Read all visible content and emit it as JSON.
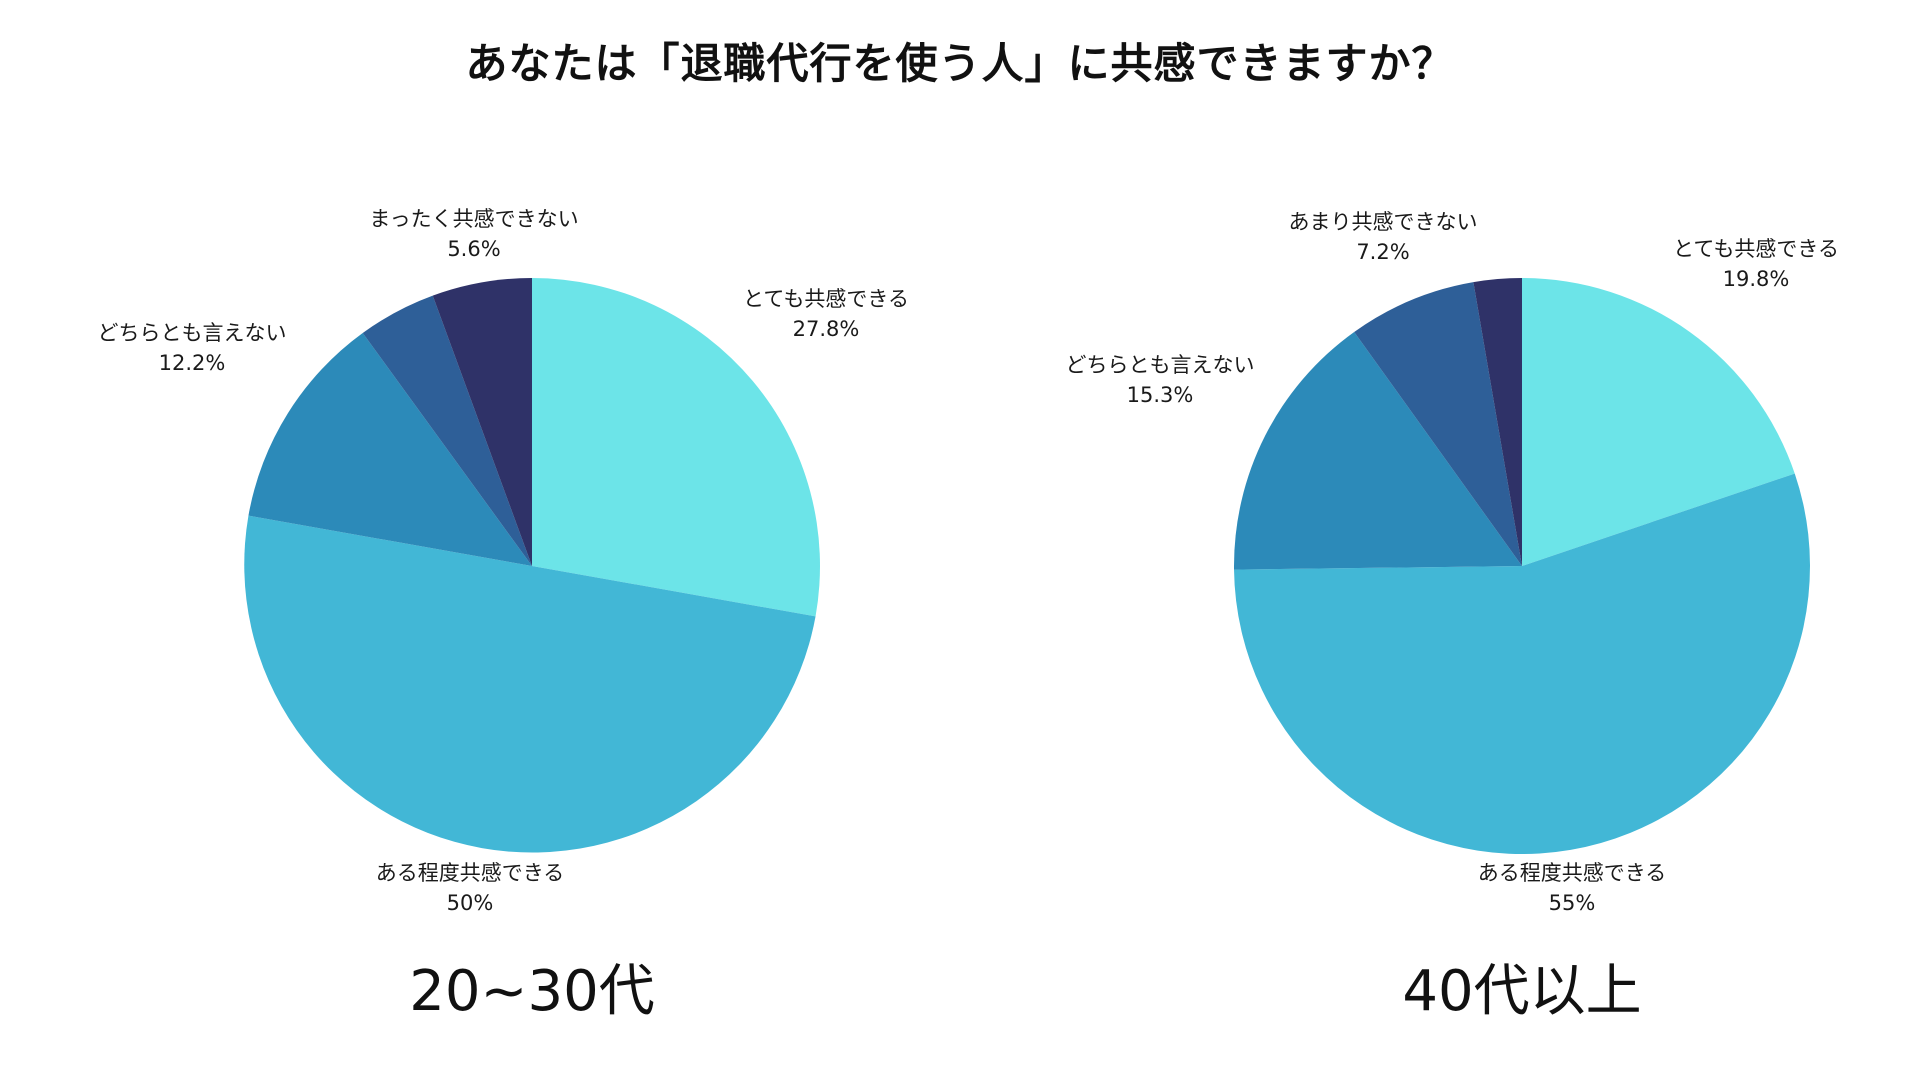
{
  "title": "あなたは「退職代行を使う人」に共感できますか？",
  "colors": {
    "とても共感できる": "#6ce4e8",
    "ある程度共感できる": "#42b7d6",
    "どちらとも言えない": "#2c8ab9",
    "あまり共感できない": "#2e5f98",
    "まったく共感できない": "#2f3268"
  },
  "chart_data": [
    {
      "type": "pie",
      "group_label": "20~30代",
      "slices": [
        {
          "label": "とても共感できる",
          "value": 27.8,
          "display": "27.8%",
          "labeled": true
        },
        {
          "label": "ある程度共感できる",
          "value": 50,
          "display": "50%",
          "labeled": true
        },
        {
          "label": "どちらとも言えない",
          "value": 12.2,
          "display": "12.2%",
          "labeled": true
        },
        {
          "label": "あまり共感できない",
          "value": 4.4,
          "display": "",
          "labeled": false
        },
        {
          "label": "まったく共感できない",
          "value": 5.6,
          "display": "5.6%",
          "labeled": true
        }
      ]
    },
    {
      "type": "pie",
      "group_label": "40代以上",
      "slices": [
        {
          "label": "とても共感できる",
          "value": 19.8,
          "display": "19.8%",
          "labeled": true
        },
        {
          "label": "ある程度共感できる",
          "value": 55,
          "display": "55%",
          "labeled": true
        },
        {
          "label": "どちらとも言えない",
          "value": 15.3,
          "display": "15.3%",
          "labeled": true
        },
        {
          "label": "あまり共感できない",
          "value": 7.2,
          "display": "7.2%",
          "labeled": true
        },
        {
          "label": "まったく共感できない",
          "value": 2.7,
          "display": "",
          "labeled": false
        }
      ]
    }
  ]
}
